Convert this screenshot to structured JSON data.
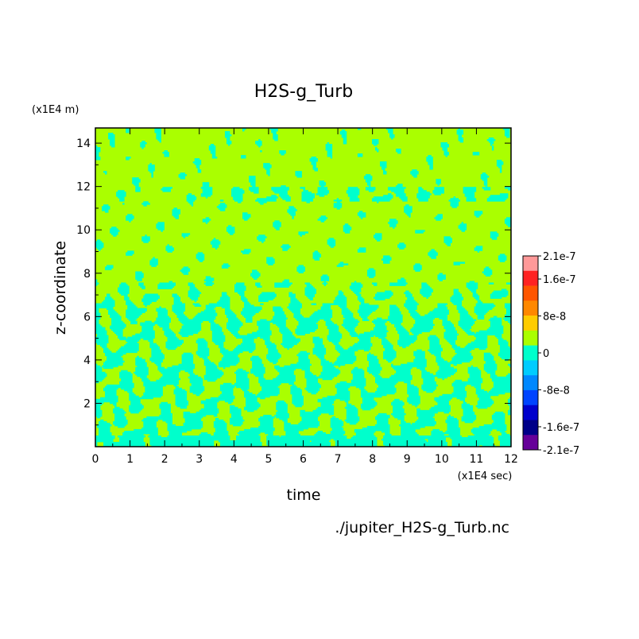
{
  "chart_data": {
    "type": "heatmap",
    "title": "H2S-g_Turb",
    "xlabel": "time",
    "ylabel": "z-coordinate",
    "x_unit": "(x1E4 sec)",
    "y_unit": "(x1E4 m)",
    "source": "./jupiter_H2S-g_Turb.nc",
    "xlim": [
      0,
      12
    ],
    "ylim": [
      0,
      14.7
    ],
    "x_ticks": [
      "0",
      "1",
      "2",
      "3",
      "4",
      "5",
      "6",
      "7",
      "8",
      "9",
      "10",
      "11",
      "12"
    ],
    "y_ticks": [
      "2",
      "4",
      "6",
      "8",
      "10",
      "12",
      "14"
    ],
    "colorbar": {
      "levels": [
        {
          "label": "2.1e-7",
          "value": 2.1e-07
        },
        {
          "label": "1.6e-7",
          "value": 1.6e-07
        },
        {
          "label": "8e-8",
          "value": 8e-08
        },
        {
          "label": "0",
          "value": 0
        },
        {
          "label": "-8e-8",
          "value": -8e-08
        },
        {
          "label": "-1.6e-7",
          "value": -1.6e-07
        },
        {
          "label": "-2.1e-7",
          "value": -2.1e-07
        }
      ],
      "colors": [
        "#ff9999",
        "#ff2222",
        "#ff5500",
        "#ff8800",
        "#ffcc00",
        "#aaff00",
        "#00ffcc",
        "#00ccff",
        "#0088ff",
        "#0044ff",
        "#0000cc",
        "#000088",
        "#660099"
      ]
    },
    "background_color": "#aaff00",
    "negative_color": "#00ffcc",
    "grid": false,
    "legend_position": "right"
  }
}
